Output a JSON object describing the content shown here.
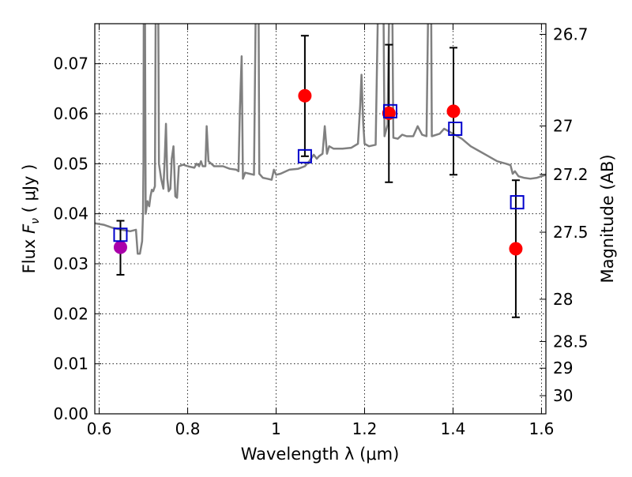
{
  "chart_data": {
    "type": "scatter",
    "xlabel": "Wavelength  λ (μm)",
    "ylabel": "Flux  F_ν  ( μJy )",
    "ylabel_parts": {
      "prefix": "Flux  ",
      "var": "F",
      "sub": "ν",
      "unit": "  ( μJy )"
    },
    "y2label": "Magnitude (AB)",
    "xlim": [
      0.59,
      1.61
    ],
    "ylim": [
      0.0,
      0.078
    ],
    "xticks": [
      0.6,
      0.8,
      1.0,
      1.2,
      1.4,
      1.6
    ],
    "xtick_labels": [
      "0.6",
      "0.8",
      "1",
      "1.2",
      "1.4",
      "1.6"
    ],
    "yticks": [
      0.0,
      0.01,
      0.02,
      0.03,
      0.04,
      0.05,
      0.06,
      0.07
    ],
    "ytick_labels": [
      "0.00",
      "0.01",
      "0.02",
      "0.03",
      "0.04",
      "0.05",
      "0.06",
      "0.07"
    ],
    "y2ticks": [
      {
        "mag": 26.7,
        "label": "26.7"
      },
      {
        "mag": 27,
        "label": "27"
      },
      {
        "mag": 27.2,
        "label": "27.2"
      },
      {
        "mag": 27.5,
        "label": "27.5"
      },
      {
        "mag": 28,
        "label": "28"
      },
      {
        "mag": 28.5,
        "label": "28.5"
      },
      {
        "mag": 29,
        "label": "29"
      },
      {
        "mag": 30,
        "label": "30"
      }
    ],
    "grid": true,
    "colors": {
      "spectrum": "#808080",
      "observed": "#ff0000",
      "optical_point": "#aa00aa",
      "model": "#0000cc",
      "errorbar": "#000000"
    },
    "series": [
      {
        "kind": "spectrum",
        "points": [
          [
            0.59,
            0.0381
          ],
          [
            0.61,
            0.0378
          ],
          [
            0.63,
            0.0372
          ],
          [
            0.65,
            0.0368
          ],
          [
            0.67,
            0.0365
          ],
          [
            0.683,
            0.0368
          ],
          [
            0.687,
            0.032
          ],
          [
            0.692,
            0.032
          ],
          [
            0.697,
            0.0345
          ],
          [
            0.699,
            0.04
          ],
          [
            0.7,
            0.05
          ],
          [
            0.701,
            0.09
          ],
          [
            0.703,
            0.09
          ],
          [
            0.705,
            0.04
          ],
          [
            0.709,
            0.0425
          ],
          [
            0.713,
            0.0415
          ],
          [
            0.716,
            0.0435
          ],
          [
            0.719,
            0.0448
          ],
          [
            0.722,
            0.0445
          ],
          [
            0.726,
            0.0455
          ],
          [
            0.728,
            0.09
          ],
          [
            0.733,
            0.09
          ],
          [
            0.735,
            0.05
          ],
          [
            0.74,
            0.047
          ],
          [
            0.745,
            0.045
          ],
          [
            0.748,
            0.0505
          ],
          [
            0.751,
            0.058
          ],
          [
            0.754,
            0.047
          ],
          [
            0.757,
            0.0445
          ],
          [
            0.761,
            0.045
          ],
          [
            0.764,
            0.051
          ],
          [
            0.768,
            0.0535
          ],
          [
            0.772,
            0.0435
          ],
          [
            0.776,
            0.0432
          ],
          [
            0.78,
            0.0495
          ],
          [
            0.79,
            0.0498
          ],
          [
            0.8,
            0.0495
          ],
          [
            0.815,
            0.0492
          ],
          [
            0.82,
            0.05
          ],
          [
            0.826,
            0.0495
          ],
          [
            0.83,
            0.0505
          ],
          [
            0.834,
            0.0495
          ],
          [
            0.84,
            0.0495
          ],
          [
            0.843,
            0.0575
          ],
          [
            0.847,
            0.0505
          ],
          [
            0.86,
            0.0495
          ],
          [
            0.88,
            0.0495
          ],
          [
            0.895,
            0.049
          ],
          [
            0.91,
            0.0488
          ],
          [
            0.915,
            0.0485
          ],
          [
            0.918,
            0.0605
          ],
          [
            0.922,
            0.0715
          ],
          [
            0.925,
            0.047
          ],
          [
            0.93,
            0.0482
          ],
          [
            0.94,
            0.048
          ],
          [
            0.95,
            0.0478
          ],
          [
            0.955,
            0.09
          ],
          [
            0.96,
            0.09
          ],
          [
            0.962,
            0.048
          ],
          [
            0.97,
            0.0472
          ],
          [
            0.98,
            0.047
          ],
          [
            0.99,
            0.0468
          ],
          [
            0.995,
            0.0488
          ],
          [
            1.0,
            0.0478
          ],
          [
            1.01,
            0.048
          ],
          [
            1.03,
            0.0488
          ],
          [
            1.05,
            0.049
          ],
          [
            1.065,
            0.0495
          ],
          [
            1.075,
            0.0505
          ],
          [
            1.085,
            0.0518
          ],
          [
            1.092,
            0.051
          ],
          [
            1.097,
            0.0515
          ],
          [
            1.105,
            0.052
          ],
          [
            1.11,
            0.0575
          ],
          [
            1.115,
            0.052
          ],
          [
            1.12,
            0.0535
          ],
          [
            1.13,
            0.053
          ],
          [
            1.15,
            0.053
          ],
          [
            1.17,
            0.0532
          ],
          [
            1.185,
            0.054
          ],
          [
            1.19,
            0.0615
          ],
          [
            1.193,
            0.0678
          ],
          [
            1.197,
            0.058
          ],
          [
            1.2,
            0.054
          ],
          [
            1.21,
            0.0535
          ],
          [
            1.225,
            0.0538
          ],
          [
            1.232,
            0.09
          ],
          [
            1.242,
            0.09
          ],
          [
            1.245,
            0.0555
          ],
          [
            1.252,
            0.0578
          ],
          [
            1.257,
            0.09
          ],
          [
            1.262,
            0.09
          ],
          [
            1.265,
            0.0552
          ],
          [
            1.275,
            0.055
          ],
          [
            1.285,
            0.0558
          ],
          [
            1.295,
            0.0555
          ],
          [
            1.31,
            0.0555
          ],
          [
            1.32,
            0.0575
          ],
          [
            1.33,
            0.0558
          ],
          [
            1.34,
            0.0555
          ],
          [
            1.345,
            0.09
          ],
          [
            1.35,
            0.09
          ],
          [
            1.352,
            0.0555
          ],
          [
            1.37,
            0.056
          ],
          [
            1.38,
            0.057
          ],
          [
            1.39,
            0.0565
          ],
          [
            1.4,
            0.056
          ],
          [
            1.42,
            0.055
          ],
          [
            1.44,
            0.0535
          ],
          [
            1.46,
            0.0525
          ],
          [
            1.48,
            0.0515
          ],
          [
            1.5,
            0.0505
          ],
          [
            1.52,
            0.05
          ],
          [
            1.53,
            0.0497
          ],
          [
            1.535,
            0.048
          ],
          [
            1.54,
            0.0485
          ],
          [
            1.548,
            0.0475
          ],
          [
            1.56,
            0.0472
          ],
          [
            1.575,
            0.047
          ],
          [
            1.59,
            0.0472
          ],
          [
            1.61,
            0.0478
          ]
        ]
      },
      {
        "kind": "errorbars",
        "points": [
          {
            "x": 0.648,
            "low": 0.0278,
            "high": 0.0386
          },
          {
            "x": 1.065,
            "low": 0.0515,
            "high": 0.0756
          },
          {
            "x": 1.255,
            "low": 0.0463,
            "high": 0.0738
          },
          {
            "x": 1.401,
            "low": 0.0478,
            "high": 0.0732
          },
          {
            "x": 1.542,
            "low": 0.0193,
            "high": 0.0467
          }
        ]
      },
      {
        "kind": "observed",
        "points": [
          {
            "x": 0.648,
            "y": 0.0333,
            "color": "#aa00aa"
          },
          {
            "x": 1.065,
            "y": 0.0636,
            "color": "#ff0000"
          },
          {
            "x": 1.255,
            "y": 0.0601,
            "color": "#ff0000"
          },
          {
            "x": 1.401,
            "y": 0.0605,
            "color": "#ff0000"
          },
          {
            "x": 1.542,
            "y": 0.033,
            "color": "#ff0000"
          }
        ]
      },
      {
        "kind": "model",
        "points": [
          {
            "x": 0.648,
            "y": 0.0358
          },
          {
            "x": 1.065,
            "y": 0.0515
          },
          {
            "x": 1.258,
            "y": 0.0605
          },
          {
            "x": 1.405,
            "y": 0.057
          },
          {
            "x": 1.545,
            "y": 0.0423
          }
        ]
      }
    ]
  }
}
